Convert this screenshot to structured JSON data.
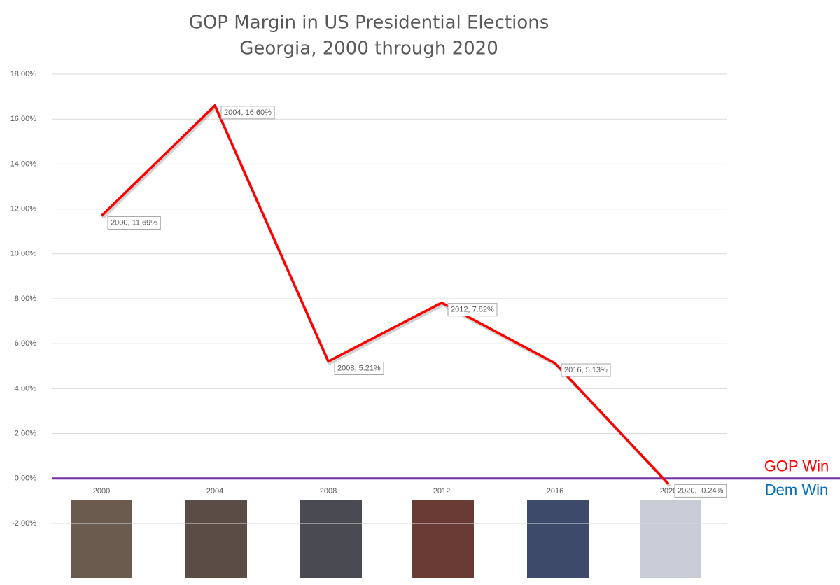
{
  "chart_data": {
    "type": "line",
    "title": [
      "GOP Margin in US Presidential Elections",
      "Georgia, 2000 through 2020"
    ],
    "categories": [
      "2000",
      "2004",
      "2008",
      "2012",
      "2016",
      "2020"
    ],
    "series": [
      {
        "name": "GOP Margin",
        "color": "#ff0000",
        "values": [
          11.69,
          16.6,
          5.21,
          7.82,
          5.13,
          -0.24
        ],
        "value_labels": [
          "2000, 11.69%",
          "2004, 16.60%",
          "2008, 5.21%",
          "2012, 7.82%",
          "2016, 5.13%",
          "2020, -0.24%"
        ]
      }
    ],
    "ylim": [
      -2,
      18
    ],
    "yticks": [
      {
        "value": -2,
        "label": "-2.00%"
      },
      {
        "value": 0,
        "label": "0.00%"
      },
      {
        "value": 2,
        "label": "2.00%"
      },
      {
        "value": 4,
        "label": "4.00%"
      },
      {
        "value": 6,
        "label": "6.00%"
      },
      {
        "value": 8,
        "label": "8.00%"
      },
      {
        "value": 10,
        "label": "10.00%"
      },
      {
        "value": 12,
        "label": "12.00%"
      },
      {
        "value": 14,
        "label": "14.00%"
      },
      {
        "value": 16,
        "label": "16.00%"
      },
      {
        "value": 18,
        "label": "18.00%"
      }
    ],
    "grid": true,
    "reference_line": {
      "value": 0,
      "color": "#7030a0"
    },
    "annotations": [
      {
        "text": "GOP Win",
        "color": "#ff0000"
      },
      {
        "text": "Dem Win",
        "color": "#0070c0"
      }
    ]
  }
}
